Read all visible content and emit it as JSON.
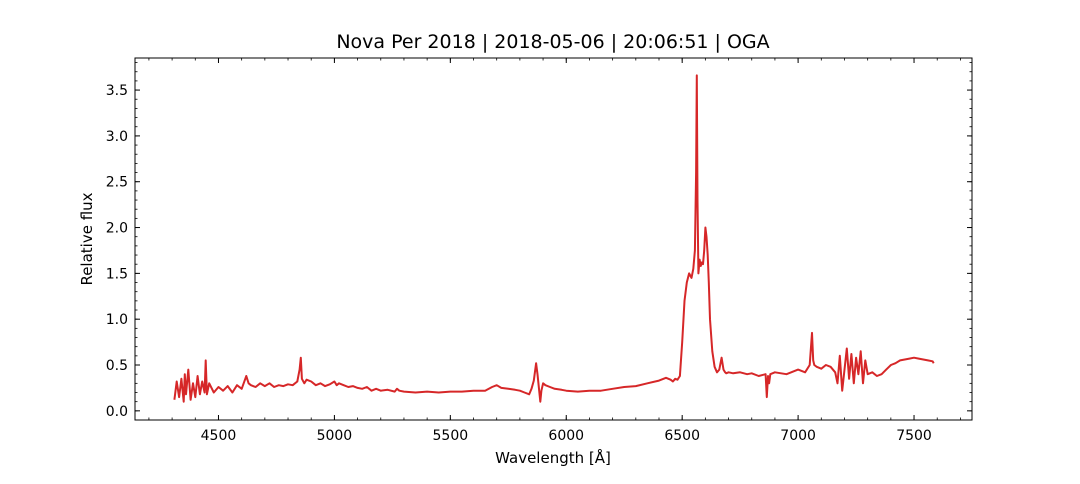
{
  "chart_data": {
    "type": "line",
    "title": "Nova Per 2018 | 2018-05-06 | 20:06:51 | OGA",
    "xlabel": "Wavelength [Å]",
    "ylabel": "Relative flux",
    "xlim": [
      4140,
      7750
    ],
    "ylim": [
      -0.1,
      3.85
    ],
    "x_ticks": [
      4500,
      5000,
      5500,
      6000,
      6500,
      7000,
      7500
    ],
    "x_tick_labels": [
      "4500",
      "5000",
      "5500",
      "6000",
      "6500",
      "7000",
      "7500"
    ],
    "y_ticks": [
      0.0,
      0.5,
      1.0,
      1.5,
      2.0,
      2.5,
      3.0,
      3.5
    ],
    "y_tick_labels": [
      "0.0",
      "0.5",
      "1.0",
      "1.5",
      "2.0",
      "2.5",
      "3.0",
      "3.5"
    ],
    "x_minor_step": 100,
    "y_minor_step": 0.1,
    "grid": false,
    "series": [
      {
        "color": "#d62728",
        "x": [
          4310,
          4320,
          4330,
          4340,
          4350,
          4355,
          4360,
          4370,
          4380,
          4390,
          4400,
          4410,
          4420,
          4430,
          4440,
          4445,
          4450,
          4460,
          4480,
          4500,
          4520,
          4540,
          4560,
          4580,
          4600,
          4620,
          4630,
          4640,
          4660,
          4680,
          4700,
          4720,
          4740,
          4760,
          4780,
          4800,
          4820,
          4840,
          4850,
          4855,
          4860,
          4870,
          4880,
          4900,
          4920,
          4940,
          4960,
          4980,
          5000,
          5010,
          5020,
          5040,
          5060,
          5080,
          5100,
          5120,
          5140,
          5160,
          5180,
          5200,
          5230,
          5260,
          5270,
          5280,
          5300,
          5350,
          5400,
          5450,
          5500,
          5550,
          5600,
          5650,
          5680,
          5700,
          5720,
          5750,
          5780,
          5800,
          5820,
          5840,
          5850,
          5860,
          5870,
          5876,
          5882,
          5888,
          5893,
          5900,
          5910,
          5930,
          5950,
          5980,
          6000,
          6050,
          6100,
          6150,
          6200,
          6250,
          6300,
          6350,
          6400,
          6430,
          6450,
          6460,
          6470,
          6480,
          6490,
          6500,
          6510,
          6520,
          6530,
          6540,
          6548,
          6555,
          6560,
          6563,
          6566,
          6570,
          6575,
          6580,
          6585,
          6590,
          6595,
          6600,
          6605,
          6610,
          6615,
          6620,
          6630,
          6640,
          6650,
          6660,
          6670,
          6678,
          6685,
          6690,
          6700,
          6720,
          6750,
          6780,
          6800,
          6830,
          6860,
          6865,
          6870,
          6875,
          6880,
          6900,
          6950,
          7000,
          7030,
          7050,
          7060,
          7065,
          7070,
          7080,
          7100,
          7120,
          7140,
          7160,
          7170,
          7180,
          7190,
          7200,
          7210,
          7220,
          7230,
          7240,
          7250,
          7260,
          7270,
          7280,
          7290,
          7300,
          7320,
          7340,
          7360,
          7380,
          7400,
          7420,
          7440,
          7460,
          7480,
          7500,
          7520,
          7540,
          7560,
          7580,
          7585
        ],
        "y": [
          0.12,
          0.32,
          0.15,
          0.35,
          0.1,
          0.4,
          0.18,
          0.45,
          0.12,
          0.3,
          0.15,
          0.38,
          0.18,
          0.32,
          0.2,
          0.55,
          0.18,
          0.3,
          0.2,
          0.26,
          0.22,
          0.27,
          0.2,
          0.28,
          0.24,
          0.38,
          0.3,
          0.28,
          0.26,
          0.3,
          0.27,
          0.3,
          0.26,
          0.28,
          0.27,
          0.29,
          0.28,
          0.32,
          0.45,
          0.58,
          0.35,
          0.3,
          0.34,
          0.32,
          0.28,
          0.3,
          0.27,
          0.29,
          0.32,
          0.28,
          0.3,
          0.28,
          0.26,
          0.27,
          0.25,
          0.24,
          0.26,
          0.22,
          0.24,
          0.22,
          0.23,
          0.21,
          0.24,
          0.22,
          0.21,
          0.2,
          0.21,
          0.2,
          0.21,
          0.21,
          0.22,
          0.22,
          0.26,
          0.28,
          0.25,
          0.24,
          0.23,
          0.22,
          0.2,
          0.18,
          0.24,
          0.33,
          0.52,
          0.4,
          0.25,
          0.1,
          0.22,
          0.3,
          0.28,
          0.26,
          0.24,
          0.23,
          0.22,
          0.21,
          0.22,
          0.22,
          0.24,
          0.26,
          0.27,
          0.3,
          0.33,
          0.36,
          0.34,
          0.32,
          0.35,
          0.34,
          0.38,
          0.75,
          1.2,
          1.4,
          1.5,
          1.45,
          1.55,
          1.75,
          2.6,
          3.66,
          2.3,
          1.5,
          1.65,
          1.58,
          1.62,
          1.6,
          1.75,
          2.0,
          1.9,
          1.7,
          1.4,
          1.0,
          0.65,
          0.48,
          0.42,
          0.45,
          0.58,
          0.45,
          0.42,
          0.41,
          0.42,
          0.41,
          0.42,
          0.4,
          0.41,
          0.38,
          0.4,
          0.15,
          0.38,
          0.3,
          0.4,
          0.42,
          0.4,
          0.45,
          0.42,
          0.5,
          0.85,
          0.55,
          0.5,
          0.48,
          0.46,
          0.5,
          0.48,
          0.42,
          0.3,
          0.6,
          0.22,
          0.45,
          0.68,
          0.35,
          0.62,
          0.3,
          0.58,
          0.4,
          0.65,
          0.3,
          0.55,
          0.4,
          0.42,
          0.38,
          0.4,
          0.45,
          0.5,
          0.52,
          0.55,
          0.56,
          0.57,
          0.58,
          0.57,
          0.56,
          0.55,
          0.54,
          0.52
        ]
      }
    ]
  }
}
